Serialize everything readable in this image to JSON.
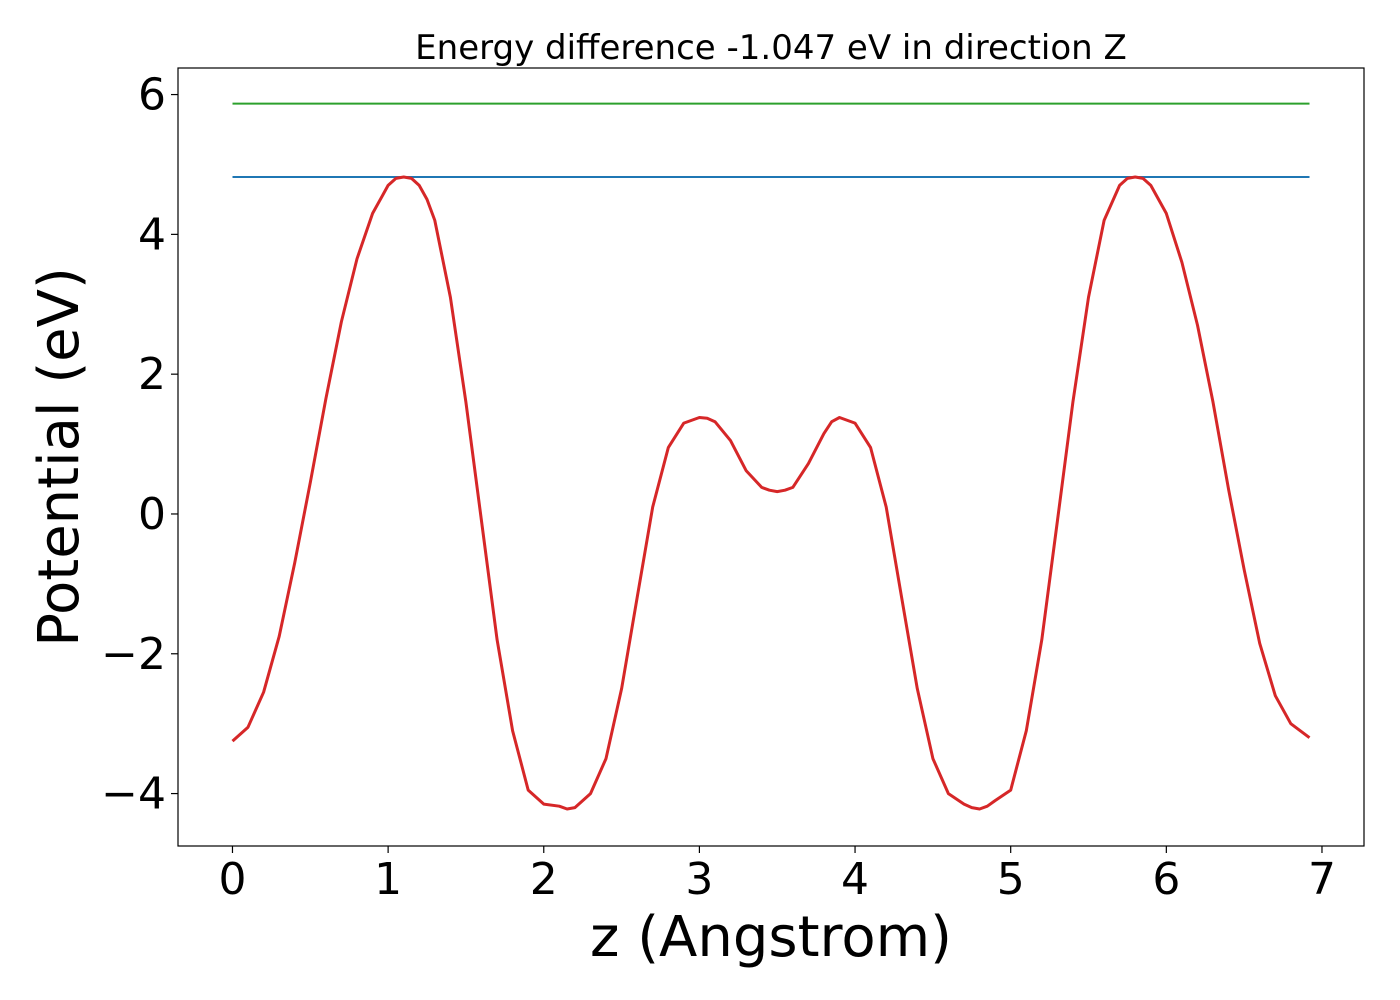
{
  "chart_data": {
    "type": "line",
    "title": "Energy difference -1.047 eV in direction Z",
    "xlabel": "z (Angstrom)",
    "ylabel": "Potential (eV)",
    "xlim": [
      -0.35,
      7.27
    ],
    "ylim": [
      -4.75,
      6.38
    ],
    "xticks": [
      0,
      1,
      2,
      3,
      4,
      5,
      6,
      7
    ],
    "yticks": [
      -4,
      -2,
      0,
      2,
      4,
      6
    ],
    "xtick_labels": [
      "0",
      "1",
      "2",
      "3",
      "4",
      "5",
      "6",
      "7"
    ],
    "ytick_labels": [
      "−4",
      "−2",
      "0",
      "2",
      "4",
      "6"
    ],
    "grid": false,
    "series": [
      {
        "color": "#2ca02c",
        "style": "hline",
        "x": [
          0,
          6.92
        ],
        "y": [
          5.87,
          5.87
        ]
      },
      {
        "color": "#1f77b4",
        "style": "hline",
        "x": [
          0,
          6.92
        ],
        "y": [
          4.82,
          4.82
        ]
      },
      {
        "color": "#d62728",
        "style": "line",
        "x": [
          0.0,
          0.1,
          0.2,
          0.3,
          0.4,
          0.5,
          0.6,
          0.7,
          0.8,
          0.9,
          1.0,
          1.05,
          1.1,
          1.15,
          1.2,
          1.25,
          1.3,
          1.4,
          1.5,
          1.6,
          1.7,
          1.8,
          1.9,
          2.0,
          2.1,
          2.15,
          2.2,
          2.25,
          2.3,
          2.4,
          2.5,
          2.6,
          2.7,
          2.8,
          2.9,
          3.0,
          3.05,
          3.1,
          3.2,
          3.3,
          3.4,
          3.45,
          3.5,
          3.55,
          3.6,
          3.7,
          3.8,
          3.85,
          3.9,
          4.0,
          4.1,
          4.2,
          4.3,
          4.4,
          4.5,
          4.6,
          4.7,
          4.75,
          4.8,
          4.85,
          4.9,
          5.0,
          5.1,
          5.2,
          5.3,
          5.4,
          5.5,
          5.6,
          5.7,
          5.75,
          5.8,
          5.85,
          5.9,
          6.0,
          6.1,
          6.2,
          6.3,
          6.4,
          6.5,
          6.6,
          6.7,
          6.8,
          6.92
        ],
        "y": [
          -3.25,
          -3.05,
          -2.55,
          -1.75,
          -0.7,
          0.45,
          1.65,
          2.75,
          3.65,
          4.3,
          4.7,
          4.8,
          4.82,
          4.8,
          4.7,
          4.5,
          4.2,
          3.1,
          1.6,
          -0.1,
          -1.8,
          -3.1,
          -3.95,
          -4.15,
          -4.18,
          -4.22,
          -4.2,
          -4.1,
          -4.0,
          -3.5,
          -2.5,
          -1.2,
          0.1,
          0.95,
          1.3,
          1.38,
          1.37,
          1.32,
          1.05,
          0.62,
          0.38,
          0.34,
          0.32,
          0.34,
          0.38,
          0.72,
          1.15,
          1.32,
          1.38,
          1.3,
          0.95,
          0.1,
          -1.2,
          -2.5,
          -3.5,
          -4.0,
          -4.15,
          -4.2,
          -4.22,
          -4.18,
          -4.1,
          -3.95,
          -3.1,
          -1.8,
          -0.1,
          1.6,
          3.1,
          4.2,
          4.7,
          4.8,
          4.82,
          4.8,
          4.7,
          4.3,
          3.6,
          2.7,
          1.6,
          0.35,
          -0.8,
          -1.85,
          -2.6,
          -3.0,
          -3.2
        ]
      }
    ]
  }
}
